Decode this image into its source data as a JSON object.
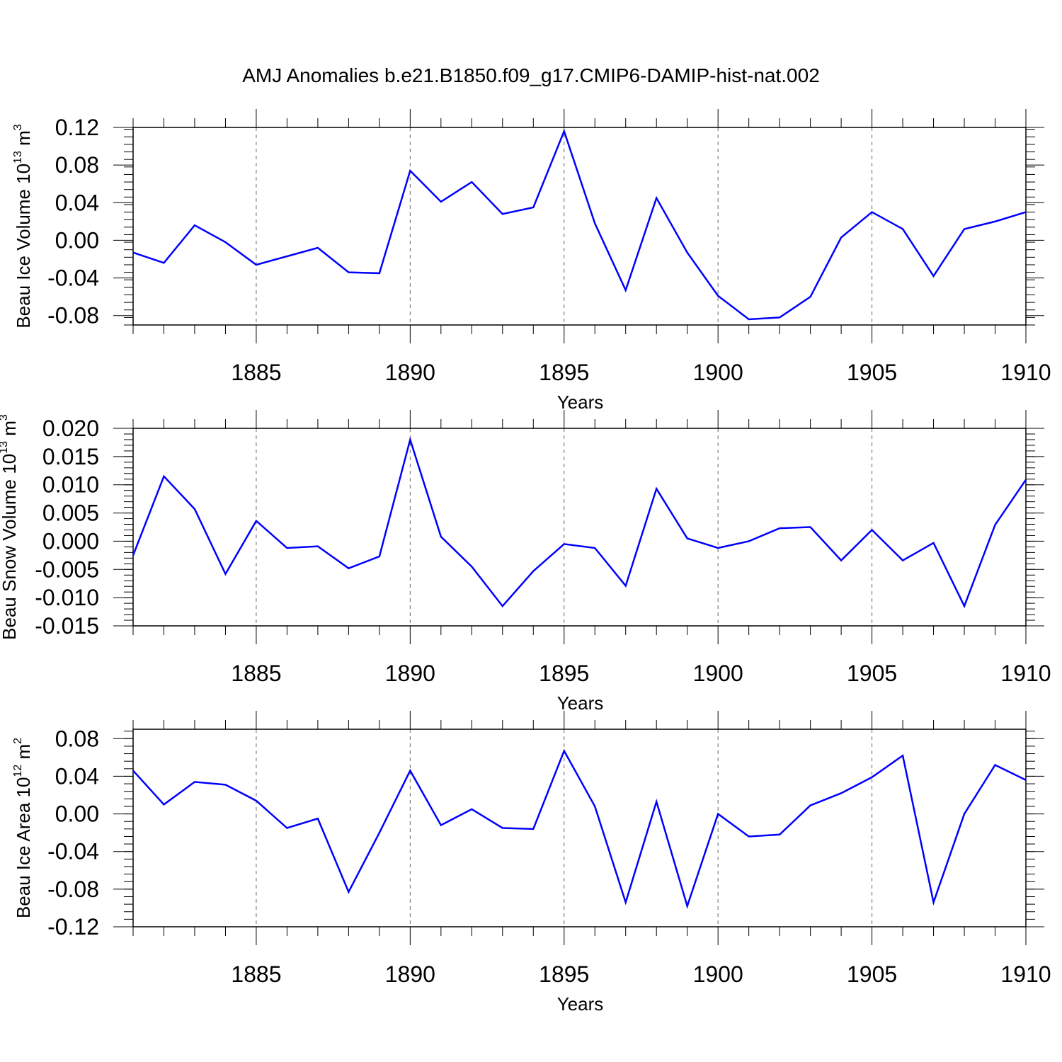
{
  "title": "AMJ Anomalies b.e21.B1850.f09_g17.CMIP6-DAMIP-hist-nat.002",
  "chart_data": [
    {
      "type": "line",
      "id": "ice-volume",
      "title": "",
      "xlabel": "Years",
      "ylabel_main": "Beau Ice Volume 10",
      "ylabel_exp": "13",
      "ylabel_unit": " m",
      "ylabel_unit_exp": "3",
      "color": "#0000ff",
      "xlim": [
        1881,
        1910
      ],
      "ylim": [
        -0.09,
        0.12
      ],
      "x_major_ticks": [
        1885,
        1890,
        1895,
        1900,
        1905,
        1910
      ],
      "x_tick_labels": [
        "1885",
        "1890",
        "1895",
        "1900",
        "1905",
        "1910"
      ],
      "y_major_ticks": [
        -0.08,
        -0.04,
        0.0,
        0.04,
        0.08,
        0.12
      ],
      "y_tick_labels": [
        "-0.08",
        "-0.04",
        "0.00",
        "0.04",
        "0.08",
        "0.12"
      ],
      "y_minor_step": 0.008,
      "x": [
        1881,
        1882,
        1883,
        1884,
        1885,
        1886,
        1887,
        1888,
        1889,
        1890,
        1891,
        1892,
        1893,
        1894,
        1895,
        1896,
        1897,
        1898,
        1899,
        1900,
        1901,
        1902,
        1903,
        1904,
        1905,
        1906,
        1907,
        1908,
        1909,
        1910
      ],
      "values": [
        -0.013,
        -0.024,
        0.016,
        -0.002,
        -0.026,
        -0.017,
        -0.008,
        -0.034,
        -0.035,
        0.074,
        0.041,
        0.062,
        0.028,
        0.035,
        0.116,
        0.018,
        -0.053,
        0.045,
        -0.013,
        -0.059,
        -0.084,
        -0.082,
        -0.06,
        0.003,
        0.03,
        0.012,
        -0.038,
        0.012,
        0.02,
        0.03
      ]
    },
    {
      "type": "line",
      "id": "snow-volume",
      "title": "",
      "xlabel": "Years",
      "ylabel_main": "Beau Snow Volume 10",
      "ylabel_exp": "13",
      "ylabel_unit": " m",
      "ylabel_unit_exp": "3",
      "color": "#0000ff",
      "xlim": [
        1881,
        1910
      ],
      "ylim": [
        -0.015,
        0.02
      ],
      "x_major_ticks": [
        1885,
        1890,
        1895,
        1900,
        1905,
        1910
      ],
      "x_tick_labels": [
        "1885",
        "1890",
        "1895",
        "1900",
        "1905",
        "1910"
      ],
      "y_major_ticks": [
        -0.015,
        -0.01,
        -0.005,
        0.0,
        0.005,
        0.01,
        0.015,
        0.02
      ],
      "y_tick_labels": [
        "-0.015",
        "-0.010",
        "-0.005",
        "0.000",
        "0.005",
        "0.010",
        "0.015",
        "0.020"
      ],
      "y_minor_step": 0.001,
      "x": [
        1881,
        1882,
        1883,
        1884,
        1885,
        1886,
        1887,
        1888,
        1889,
        1890,
        1891,
        1892,
        1893,
        1894,
        1895,
        1896,
        1897,
        1898,
        1899,
        1900,
        1901,
        1902,
        1903,
        1904,
        1905,
        1906,
        1907,
        1908,
        1909,
        1910
      ],
      "values": [
        -0.0025,
        0.0115,
        0.0057,
        -0.0058,
        0.0036,
        -0.0012,
        -0.0009,
        -0.0048,
        -0.0027,
        0.018,
        0.0008,
        -0.0045,
        -0.0115,
        -0.0053,
        -0.0005,
        -0.0012,
        -0.0079,
        0.0093,
        0.0005,
        -0.0012,
        0.0,
        0.0023,
        0.0025,
        -0.0034,
        0.002,
        -0.0034,
        -0.0003,
        -0.0115,
        0.0029,
        0.0109
      ]
    },
    {
      "type": "line",
      "id": "ice-area",
      "title": "",
      "xlabel": "Years",
      "ylabel_main": "Beau Ice Area 10",
      "ylabel_exp": "12",
      "ylabel_unit": " m",
      "ylabel_unit_exp": "2",
      "color": "#0000ff",
      "xlim": [
        1881,
        1910
      ],
      "ylim": [
        -0.12,
        0.09
      ],
      "x_major_ticks": [
        1885,
        1890,
        1895,
        1900,
        1905,
        1910
      ],
      "x_tick_labels": [
        "1885",
        "1890",
        "1895",
        "1900",
        "1905",
        "1910"
      ],
      "y_major_ticks": [
        -0.12,
        -0.08,
        -0.04,
        0.0,
        0.04,
        0.08
      ],
      "y_tick_labels": [
        "-0.12",
        "-0.08",
        "-0.04",
        "0.00",
        "0.04",
        "0.08"
      ],
      "y_minor_step": 0.008,
      "x": [
        1881,
        1882,
        1883,
        1884,
        1885,
        1886,
        1887,
        1888,
        1889,
        1890,
        1891,
        1892,
        1893,
        1894,
        1895,
        1896,
        1897,
        1898,
        1899,
        1900,
        1901,
        1902,
        1903,
        1904,
        1905,
        1906,
        1907,
        1908,
        1909,
        1910
      ],
      "values": [
        0.046,
        0.01,
        0.034,
        0.031,
        0.014,
        -0.015,
        -0.005,
        -0.083,
        -0.02,
        0.046,
        -0.012,
        0.005,
        -0.015,
        -0.016,
        0.067,
        0.008,
        -0.094,
        0.013,
        -0.098,
        0.0,
        -0.024,
        -0.022,
        0.009,
        0.022,
        0.039,
        0.062,
        -0.094,
        0.0,
        0.052,
        0.036
      ]
    }
  ]
}
